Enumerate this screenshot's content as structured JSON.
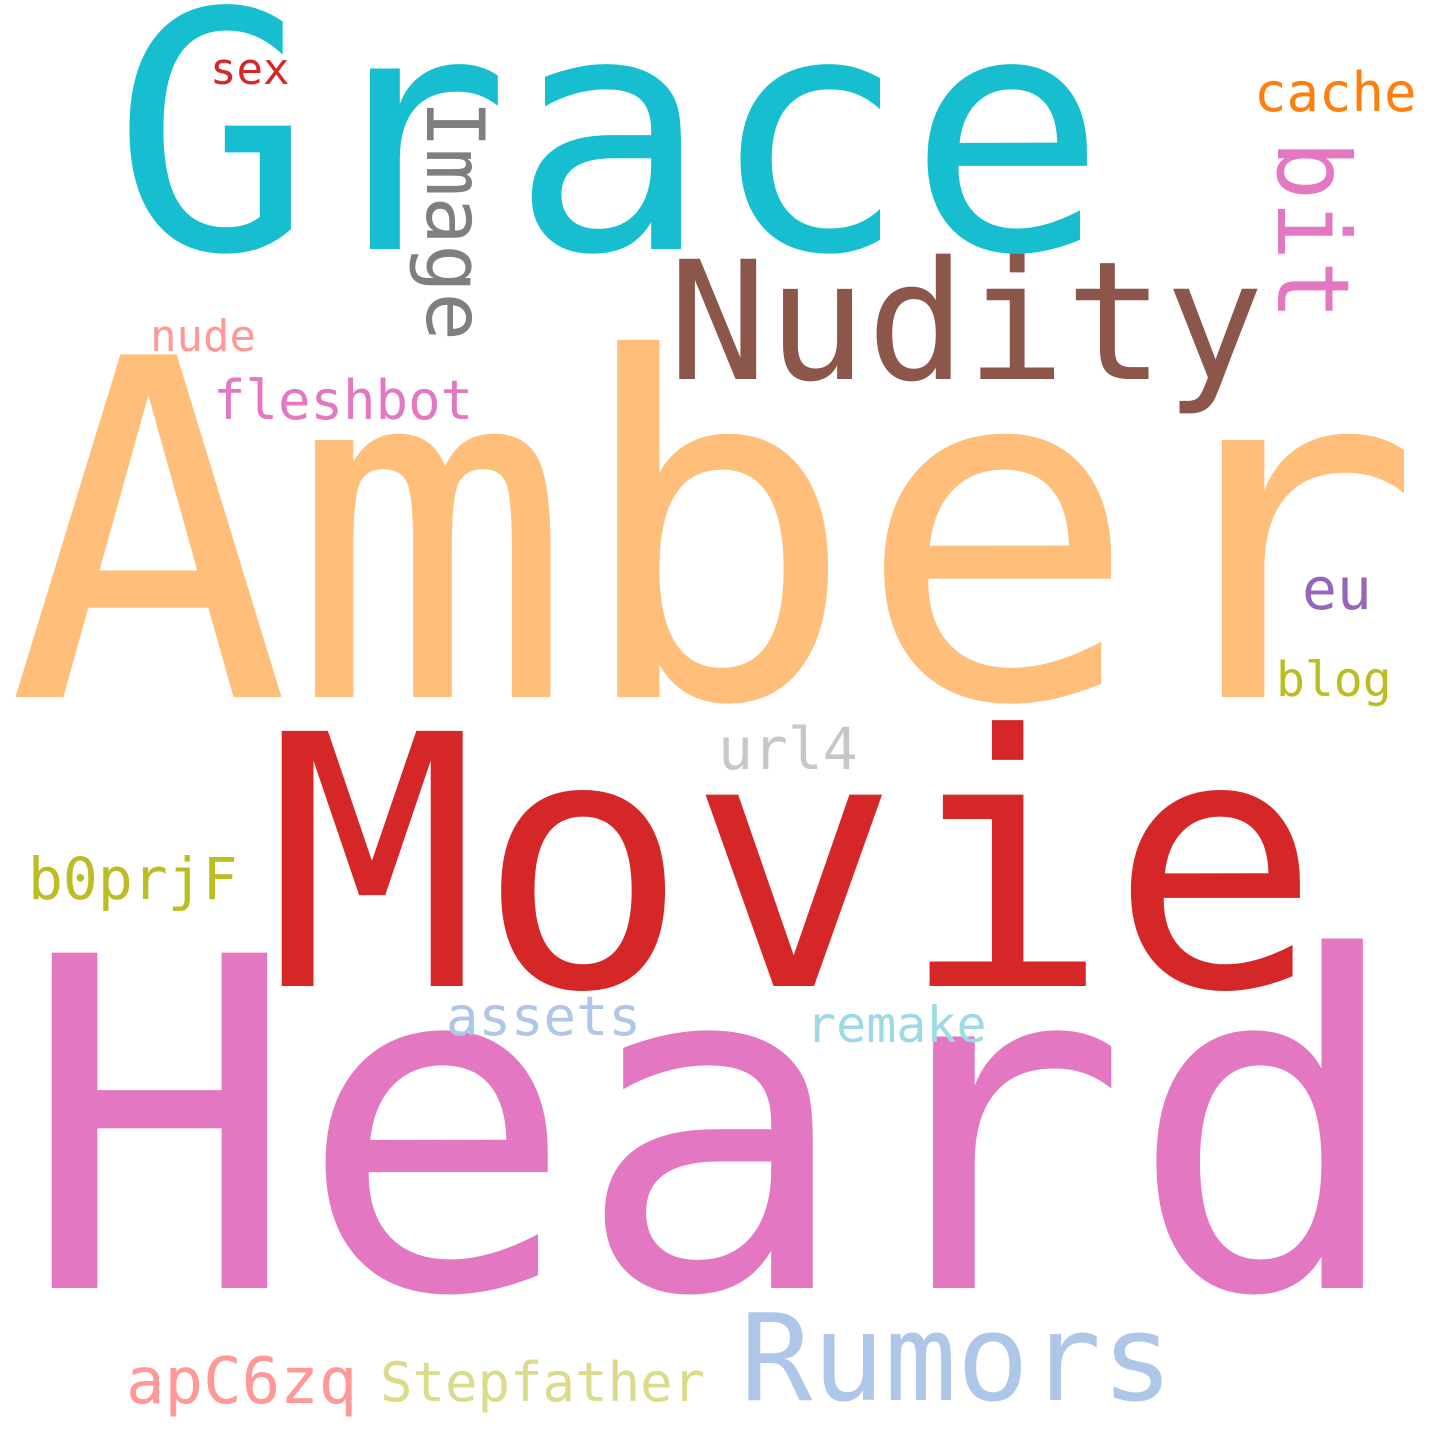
{
  "words": {
    "grace": {
      "text": "Grace",
      "color": "#17becf"
    },
    "amber": {
      "text": "Amber",
      "color": "#ffbe7a"
    },
    "movie": {
      "text": "Movie",
      "color": "#d62728"
    },
    "heard": {
      "text": "Heard",
      "color": "#e377c2"
    },
    "nudity": {
      "text": "Nudity",
      "color": "#8c564b"
    },
    "rumors": {
      "text": "Rumors",
      "color": "#aec7e8"
    },
    "image": {
      "text": "Image",
      "color": "#7f7f7f",
      "orientation": "vertical"
    },
    "bit": {
      "text": "bit",
      "color": "#e377c2",
      "orientation": "vertical"
    },
    "cache": {
      "text": "cache",
      "color": "#ff7f0e"
    },
    "sex": {
      "text": "sex",
      "color": "#d62728"
    },
    "nude": {
      "text": "nude",
      "color": "#ff9896"
    },
    "fleshbot": {
      "text": "fleshbot",
      "color": "#e377c2"
    },
    "eu": {
      "text": "eu",
      "color": "#9467bd"
    },
    "blog": {
      "text": "blog",
      "color": "#bcbd22"
    },
    "url4": {
      "text": "url4",
      "color": "#c7c7c7"
    },
    "b0prjf": {
      "text": "b0prjF",
      "color": "#bcbd22"
    },
    "assets": {
      "text": "assets",
      "color": "#aec7e8"
    },
    "remake": {
      "text": "remake",
      "color": "#9edae5"
    },
    "apc6zq": {
      "text": "apC6zq",
      "color": "#ff9896"
    },
    "stepfather": {
      "text": "Stepfather",
      "color": "#dbdb8d"
    }
  }
}
